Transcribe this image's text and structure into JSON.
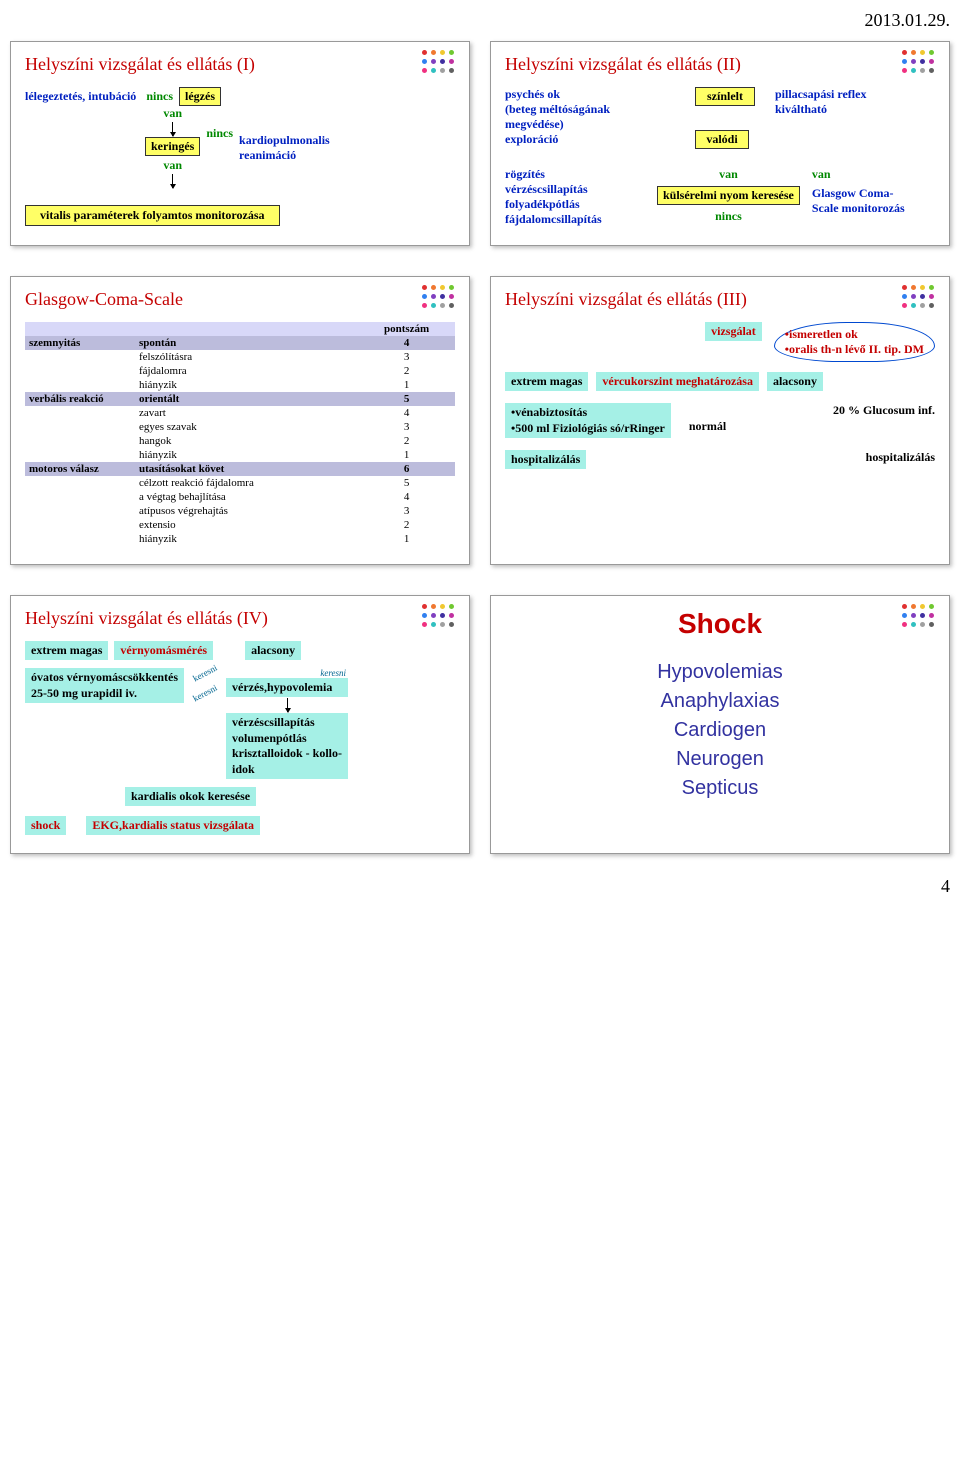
{
  "page": {
    "date": "2013.01.29.",
    "page_number": "4"
  },
  "dot_colors": [
    "#e03030",
    "#f07830",
    "#f0c830",
    "#70c830",
    "#3080f0",
    "#8040c0",
    "#4030a0",
    "#c030a0",
    "#f03080",
    "#30c0c0",
    "#a0a0a0",
    "#606060"
  ],
  "slide1": {
    "title": "Helyszíni vizsgálat és ellátás (I)",
    "n1": "lélegeztetés, intubáció",
    "nincs": "nincs",
    "legzes": "légzés",
    "van": "van",
    "keringes": "keringés",
    "kardio": "kardiopulmonalis reanimáció",
    "vitalis": "vitalis paraméterek folyamtos monitorozása"
  },
  "slide2": {
    "title": "Helyszíni vizsgálat és ellátás (II)",
    "psyches": "psychés ok",
    "beteg": "(beteg méltóságának",
    "megved": " megvédése)",
    "explor": "exploráció",
    "szinlelt": "színlelt",
    "valodi": "valódi",
    "pilla": "pillacsapási reflex kiváltható",
    "rogzites": "rögzítés",
    "verz": "vérzéscsillapítás",
    "foly": "folyadékpótlás",
    "fajd": "fájdalomcsillapítás",
    "van": "van",
    "nincs": "nincs",
    "kulser": "külsérelmi nyom keresése",
    "glasgow": "Glasgow Coma-Scale monitorozás"
  },
  "slide3": {
    "title": "Glasgow-Coma-Scale",
    "hdr_score": "pontszám",
    "rows": [
      {
        "cat": "szemnyitás",
        "items": [
          [
            "spontán",
            "4"
          ],
          [
            "felszólításra",
            "3"
          ],
          [
            "fájdalomra",
            "2"
          ],
          [
            "hiányzik",
            "1"
          ]
        ]
      },
      {
        "cat": "verbális reakció",
        "items": [
          [
            "orientált",
            "5"
          ],
          [
            "zavart",
            "4"
          ],
          [
            "egyes szavak",
            "3"
          ],
          [
            "hangok",
            "2"
          ],
          [
            "hiányzik",
            "1"
          ]
        ]
      },
      {
        "cat": "motoros válasz",
        "items": [
          [
            "utasításokat követ",
            "6"
          ],
          [
            "célzott reakció fájdalomra",
            "5"
          ],
          [
            "a végtag behajlítása",
            "4"
          ],
          [
            "atípusos végrehajtás",
            "3"
          ],
          [
            "extensio",
            "2"
          ],
          [
            "hiányzik",
            "1"
          ]
        ]
      }
    ]
  },
  "slide4": {
    "title": "Helyszíni vizsgálat és ellátás (III)",
    "vizsgalat": "vizsgálat",
    "cloud1": "•ismeretlen ok",
    "cloud2": "•oralis th-n lévő II. tip. DM",
    "extrem": "extrem magas",
    "vercukor": "vércukorszint meghatározása",
    "alacsony": "alacsony",
    "vena1": "•vénabiztosítás",
    "vena2": "•500 ml Fiziológiás só/rRinger",
    "normal": "normál",
    "glucosum": "20 % Glucosum inf.",
    "hospital": "hospitalizálás"
  },
  "slide5": {
    "title": "Helyszíni vizsgálat és ellátás (IV)",
    "extrem": "extrem magas",
    "vernyomas": "vérnyomásmérés",
    "alacsony": "alacsony",
    "keresni": "keresni",
    "ovatos1": "óvatos vérnyomáscsökkentés",
    "ovatos2": "25-50 mg urapidil iv.",
    "verzhypo": "vérzés,hypovolemia",
    "box1": "vérzéscsillapítás",
    "box2": "volumenpótlás",
    "box3": "krisztalloidok - kollo-",
    "box4": "idok",
    "kardialis": "kardialis okok keresése",
    "shock": "shock",
    "ekg": "EKG,kardialis status vizsgálata"
  },
  "slide6": {
    "title": "Shock",
    "items": [
      "Hypovolemias",
      "Anaphylaxias",
      "Cardiogen",
      "Neurogen",
      "Septicus"
    ]
  }
}
